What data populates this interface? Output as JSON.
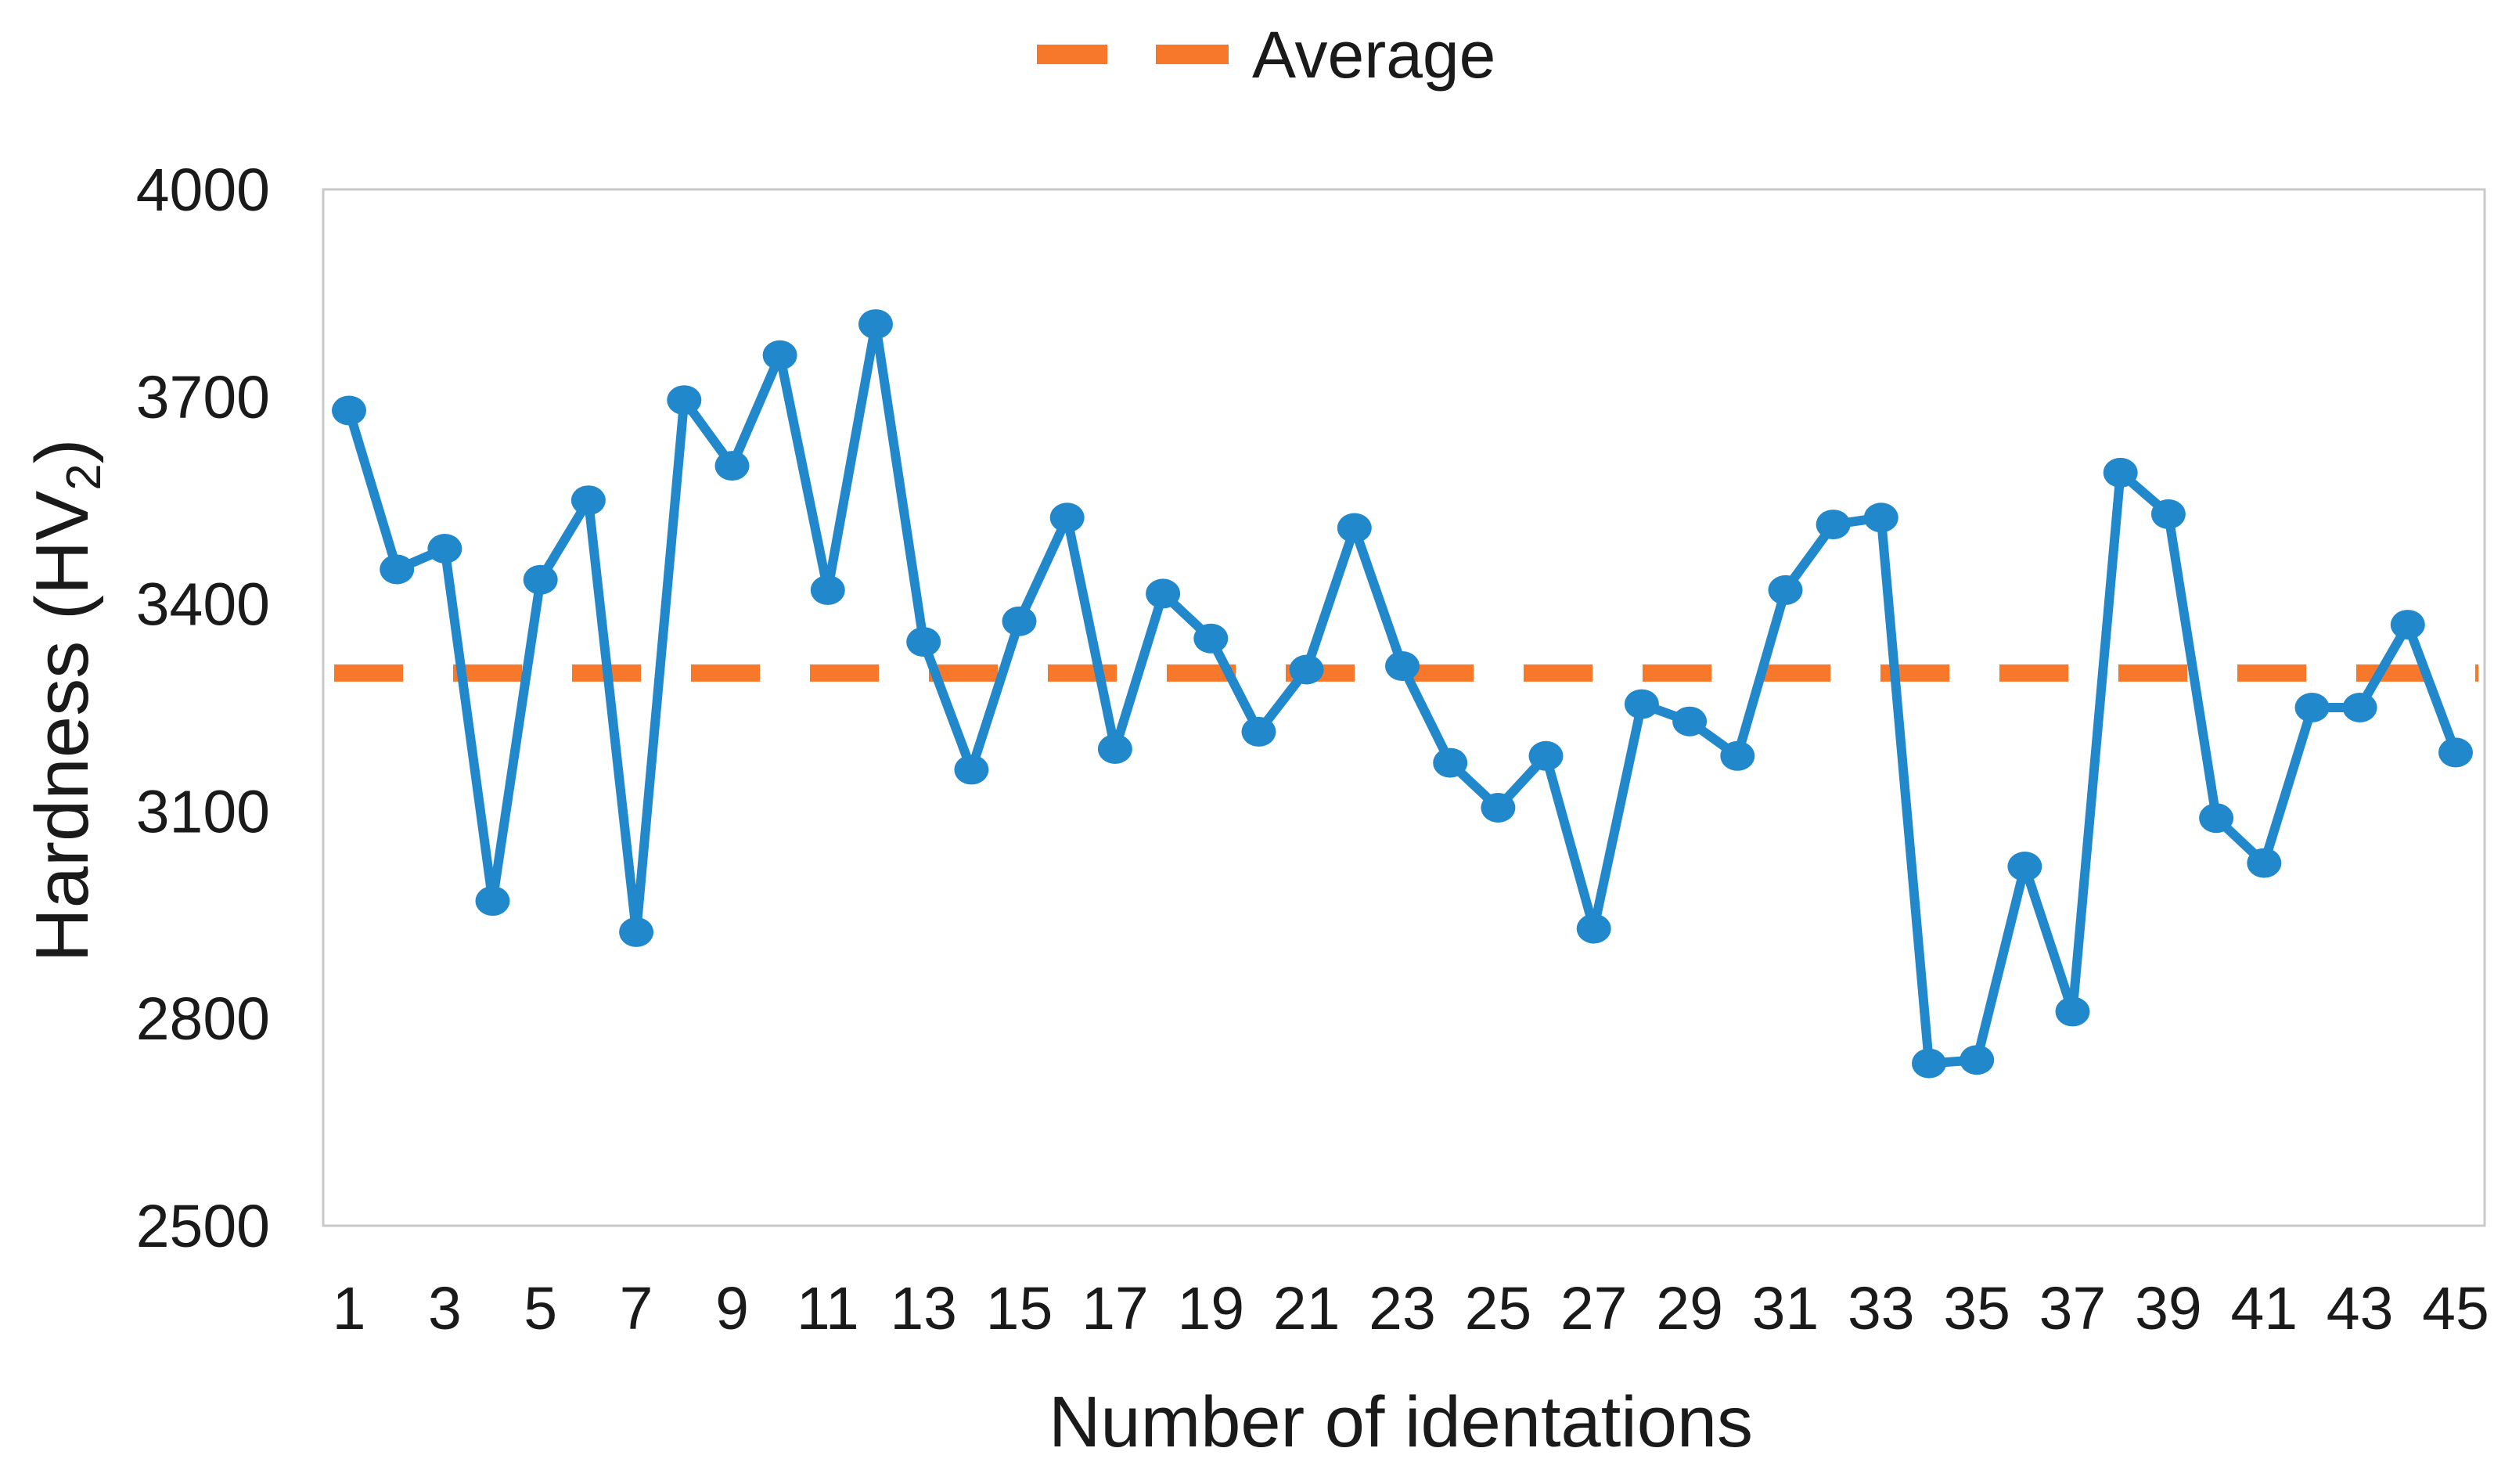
{
  "legend": {
    "average_label": "Average"
  },
  "colors": {
    "series_blue": "#2189CB",
    "average_orange": "#F8782B",
    "axis_text": "#1A1A1A",
    "frame_gray": "#C9C9C9",
    "background": "#FFFFFF"
  },
  "chart_data": {
    "type": "line",
    "title": "",
    "xlabel": "Number of identations",
    "ylabel": {
      "pre": "Hardness (HV",
      "sub": "2",
      "post": ")"
    },
    "x": [
      1,
      2,
      3,
      4,
      5,
      6,
      7,
      8,
      9,
      10,
      11,
      12,
      13,
      14,
      15,
      16,
      17,
      18,
      19,
      20,
      21,
      22,
      23,
      24,
      25,
      26,
      27,
      28,
      29,
      30,
      31,
      32,
      33,
      34,
      35,
      36,
      37,
      38,
      39,
      40,
      41,
      42,
      43,
      44,
      45
    ],
    "series": [
      {
        "name": "Hardness",
        "marker": "circle",
        "values": [
          3680,
          3450,
          3480,
          2970,
          3435,
          3550,
          2925,
          3695,
          3600,
          3760,
          3420,
          3805,
          3345,
          3160,
          3375,
          3525,
          3190,
          3415,
          3350,
          3215,
          3305,
          3510,
          3310,
          3170,
          3105,
          3180,
          2930,
          3255,
          3230,
          3180,
          3420,
          3515,
          3525,
          2735,
          2740,
          3020,
          2810,
          3590,
          3530,
          3090,
          3025,
          3250,
          3250,
          3370,
          3185
        ]
      }
    ],
    "average_line": {
      "label": "Average",
      "value": 3300,
      "style": "dashed"
    },
    "ylim": [
      2500,
      4000
    ],
    "yticks": [
      2500,
      2800,
      3100,
      3400,
      3700,
      4000
    ],
    "xticks": [
      1,
      3,
      5,
      7,
      9,
      11,
      13,
      15,
      17,
      19,
      21,
      23,
      25,
      27,
      29,
      31,
      33,
      35,
      37,
      39,
      41,
      43,
      45
    ],
    "grid": false,
    "legend_position": "top-center"
  }
}
